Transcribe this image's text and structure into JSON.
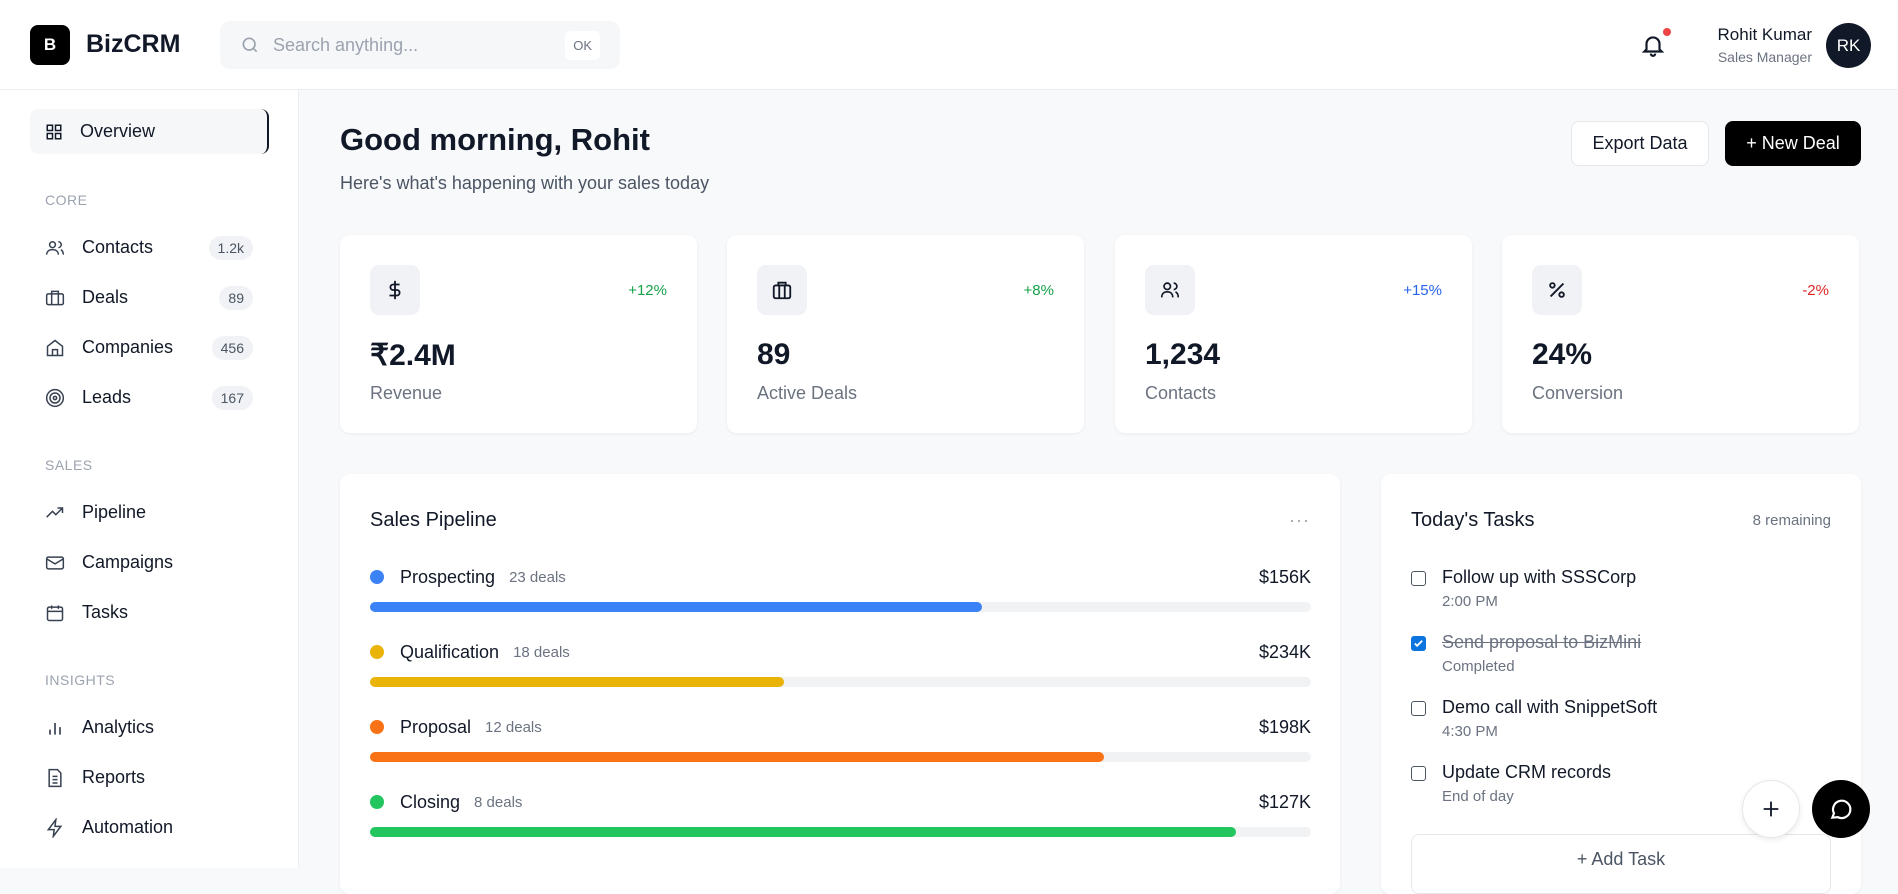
{
  "header": {
    "logo_letter": "B",
    "brand": "BizCRM",
    "search_placeholder": "Search anything...",
    "search_shortcut": "OK",
    "user_name": "Rohit Kumar",
    "user_role": "Sales Manager",
    "avatar_initials": "RK"
  },
  "sidebar": {
    "overview": "Overview",
    "sections": [
      "CORE",
      "SALES",
      "INSIGHTS"
    ],
    "core": [
      {
        "label": "Contacts",
        "count": "1.2k"
      },
      {
        "label": "Deals",
        "count": "89"
      },
      {
        "label": "Companies",
        "count": "456"
      },
      {
        "label": "Leads",
        "count": "167"
      }
    ],
    "sales": [
      {
        "label": "Pipeline"
      },
      {
        "label": "Campaigns"
      },
      {
        "label": "Tasks"
      }
    ],
    "insights": [
      {
        "label": "Analytics"
      },
      {
        "label": "Reports"
      },
      {
        "label": "Automation"
      }
    ]
  },
  "main": {
    "greeting": "Good morning, Rohit",
    "subtitle": "Here's what's happening with your sales today",
    "export_label": "Export Data",
    "new_deal_label": "+ New Deal",
    "stats": [
      {
        "icon": "dollar-icon",
        "value": "₹2.4M",
        "label": "Revenue",
        "change": "+12%",
        "change_color": "#16a34a"
      },
      {
        "icon": "briefcase-icon",
        "value": "89",
        "label": "Active Deals",
        "change": "+8%",
        "change_color": "#16a34a"
      },
      {
        "icon": "users-icon",
        "value": "1,234",
        "label": "Contacts",
        "change": "+15%",
        "change_color": "#2563eb"
      },
      {
        "icon": "percent-icon",
        "value": "24%",
        "label": "Conversion",
        "change": "-2%",
        "change_color": "#dc2626"
      }
    ],
    "pipeline": {
      "title": "Sales Pipeline",
      "more": "···",
      "stages": [
        {
          "name": "Prospecting",
          "deals": "23 deals",
          "amount": "$156K",
          "progress": 65,
          "color": "#3b82f6"
        },
        {
          "name": "Qualification",
          "deals": "18 deals",
          "amount": "$234K",
          "progress": 44,
          "color": "#eab308"
        },
        {
          "name": "Proposal",
          "deals": "12 deals",
          "amount": "$198K",
          "progress": 78,
          "color": "#f97316"
        },
        {
          "name": "Closing",
          "deals": "8 deals",
          "amount": "$127K",
          "progress": 92,
          "color": "#22c55e"
        }
      ]
    },
    "tasks": {
      "title": "Today's Tasks",
      "remaining": "8 remaining",
      "add_label": "+ Add Task",
      "items": [
        {
          "title": "Follow up with SSSCorp",
          "sub": "2:00 PM",
          "done": false
        },
        {
          "title": "Send proposal to BizMini",
          "sub": "Completed",
          "done": true
        },
        {
          "title": "Demo call with SnippetSoft",
          "sub": "4:30 PM",
          "done": false
        },
        {
          "title": "Update CRM records",
          "sub": "End of day",
          "done": false
        }
      ]
    }
  }
}
